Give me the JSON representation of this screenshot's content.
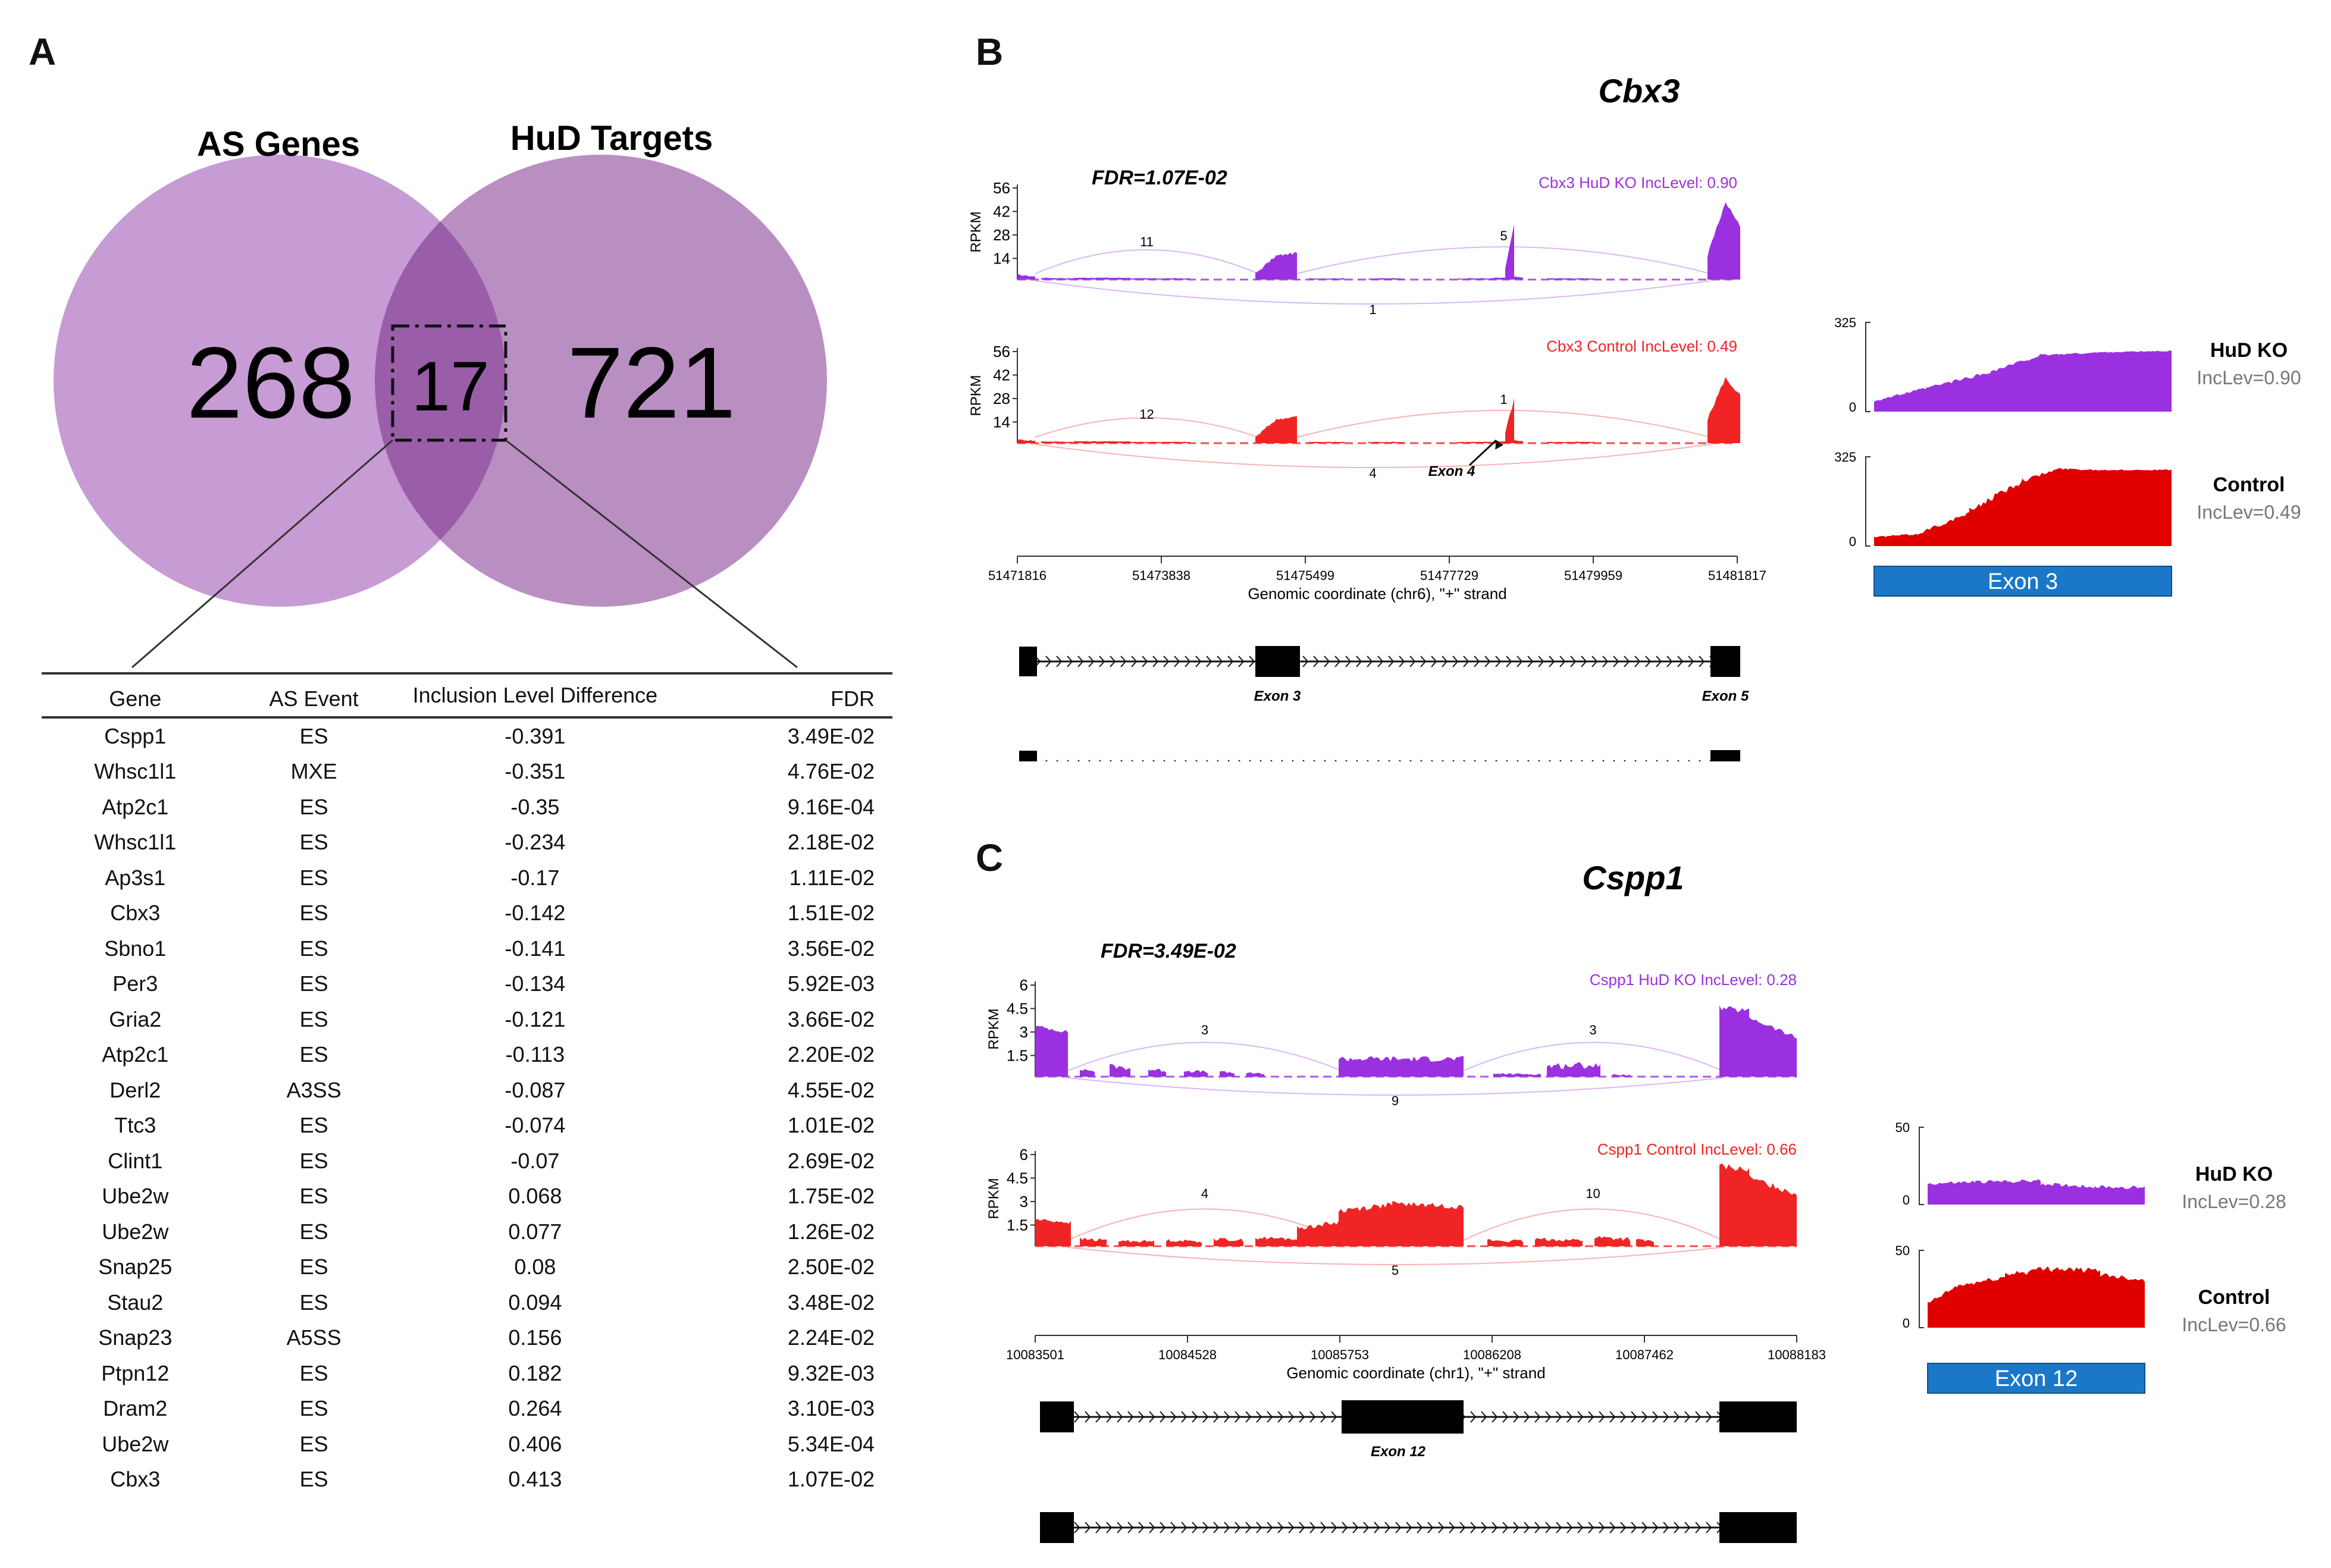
{
  "panels": {
    "a": "A",
    "b": "B",
    "c": "C"
  },
  "venn": {
    "left_title": "AS Genes",
    "right_title": "HuD Targets",
    "left_count": "268",
    "overlap_count": "17",
    "right_count": "721",
    "left_color": "#c79bd3",
    "right_color": "#b98fc2",
    "overlap_color": "#9a5ea8"
  },
  "table": {
    "headers": [
      "Gene",
      "AS Event",
      "Inclusion Level Difference",
      "FDR"
    ],
    "rows": [
      [
        "Cspp1",
        "ES",
        "-0.391",
        "3.49E-02"
      ],
      [
        "Whsc1l1",
        "MXE",
        "-0.351",
        "4.76E-02"
      ],
      [
        "Atp2c1",
        "ES",
        "-0.35",
        "9.16E-04"
      ],
      [
        "Whsc1l1",
        "ES",
        "-0.234",
        "2.18E-02"
      ],
      [
        "Ap3s1",
        "ES",
        "-0.17",
        "1.11E-02"
      ],
      [
        "Cbx3",
        "ES",
        "-0.142",
        "1.51E-02"
      ],
      [
        "Sbno1",
        "ES",
        "-0.141",
        "3.56E-02"
      ],
      [
        "Per3",
        "ES",
        "-0.134",
        "5.92E-03"
      ],
      [
        "Gria2",
        "ES",
        "-0.121",
        "3.66E-02"
      ],
      [
        "Atp2c1",
        "ES",
        "-0.113",
        "2.20E-02"
      ],
      [
        "Derl2",
        "A3SS",
        "-0.087",
        "4.55E-02"
      ],
      [
        "Ttc3",
        "ES",
        "-0.074",
        "1.01E-02"
      ],
      [
        "Clint1",
        "ES",
        "-0.07",
        "2.69E-02"
      ],
      [
        "Ube2w",
        "ES",
        "0.068",
        "1.75E-02"
      ],
      [
        "Ube2w",
        "ES",
        "0.077",
        "1.26E-02"
      ],
      [
        "Snap25",
        "ES",
        "0.08",
        "2.50E-02"
      ],
      [
        "Stau2",
        "ES",
        "0.094",
        "3.48E-02"
      ],
      [
        "Snap23",
        "A5SS",
        "0.156",
        "2.24E-02"
      ],
      [
        "Ptpn12",
        "ES",
        "0.182",
        "9.32E-03"
      ],
      [
        "Dram2",
        "ES",
        "0.264",
        "3.10E-03"
      ],
      [
        "Ube2w",
        "ES",
        "0.406",
        "5.34E-04"
      ],
      [
        "Cbx3",
        "ES",
        "0.413",
        "1.07E-02"
      ]
    ]
  },
  "chart_data": [
    {
      "type": "area",
      "gene": "Cbx3",
      "fdr": "FDR=1.07E-02",
      "ylabel": "RPKM",
      "yticks": [
        "56",
        "42",
        "28",
        "14"
      ],
      "ylim": [
        0,
        56
      ],
      "xlabel": "Genomic coordinate (chr6), \"+\" strand",
      "xticks": [
        "51471816",
        "51473838",
        "51475499",
        "51477729",
        "51479959",
        "51481817"
      ],
      "tracks": [
        {
          "name": "Cbx3 HuD KO IncLevel: 0.90",
          "color": "#9b30e0",
          "junctions_top": [
            "11",
            "5"
          ],
          "junction_bottom": "1"
        },
        {
          "name": "Cbx3 Control IncLevel: 0.49",
          "color": "#f02424",
          "junctions_top": [
            "12",
            "1"
          ],
          "junction_bottom": "4"
        }
      ],
      "exon_labels": [
        "Exon 3",
        "Exon 5"
      ],
      "arrow_label": "Exon 4",
      "zoom": {
        "exon": "Exon 3",
        "ymax": "325",
        "ymin": "0",
        "ko_label": "HuD KO",
        "ko_inc": "IncLev=0.90",
        "ctrl_label": "Control",
        "ctrl_inc": "IncLev=0.49"
      }
    },
    {
      "type": "area",
      "gene": "Cspp1",
      "fdr": "FDR=3.49E-02",
      "ylabel": "RPKM",
      "yticks": [
        "6",
        "4.5",
        "3",
        "1.5"
      ],
      "ylim": [
        0,
        6
      ],
      "xlabel": "Genomic coordinate (chr1), \"+\" strand",
      "xticks": [
        "10083501",
        "10084528",
        "10085753",
        "10086208",
        "10087462",
        "10088183"
      ],
      "tracks": [
        {
          "name": "Cspp1 HuD KO IncLevel: 0.28",
          "color": "#9b30e0",
          "junctions_top": [
            "3",
            "3"
          ],
          "junction_bottom": "9"
        },
        {
          "name": "Cspp1 Control IncLevel: 0.66",
          "color": "#f02424",
          "junctions_top": [
            "4",
            "10"
          ],
          "junction_bottom": "5"
        }
      ],
      "exon_labels": [
        "Exon 12"
      ],
      "zoom": {
        "exon": "Exon 12",
        "ymax": "50",
        "ymin": "0",
        "ko_label": "HuD KO",
        "ko_inc": "IncLev=0.28",
        "ctrl_label": "Control",
        "ctrl_inc": "IncLev=0.66"
      }
    }
  ]
}
